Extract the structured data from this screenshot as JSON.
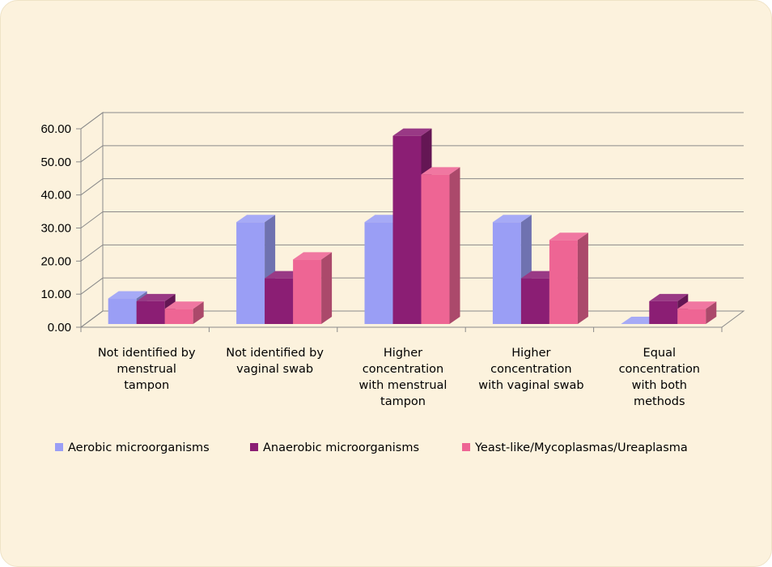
{
  "chart_data": {
    "type": "bar",
    "title": "",
    "xlabel": "",
    "ylabel": "",
    "ylim": [
      0,
      60
    ],
    "yticks": [
      "0.00",
      "10.00",
      "20.00",
      "30.00",
      "40.00",
      "50.00",
      "60.00"
    ],
    "categories": [
      [
        "Not identified by",
        "menstrual",
        "tampon"
      ],
      [
        "Not identified by",
        "vaginal swab"
      ],
      [
        "Higher",
        "concentration",
        "with menstrual",
        "tampon"
      ],
      [
        "Higher",
        "concentration",
        "with vaginal swab"
      ],
      [
        "Equal",
        "concentration",
        "with both",
        "methods"
      ]
    ],
    "series": [
      {
        "name": "Aerobic microorganisms",
        "values": [
          7.7,
          30.8,
          30.8,
          30.8,
          0
        ],
        "color": "#9a9ef5"
      },
      {
        "name": "Anaerobic microorganisms",
        "values": [
          6.9,
          13.8,
          56.9,
          13.8,
          6.9
        ],
        "color": "#8b1e74"
      },
      {
        "name": "Yeast-like/Mycoplasmas/Ureaplasma",
        "values": [
          4.6,
          19.5,
          45.2,
          25.4,
          4.6
        ],
        "color": "#ee6594"
      }
    ],
    "grid": true,
    "legend": "bottom"
  }
}
